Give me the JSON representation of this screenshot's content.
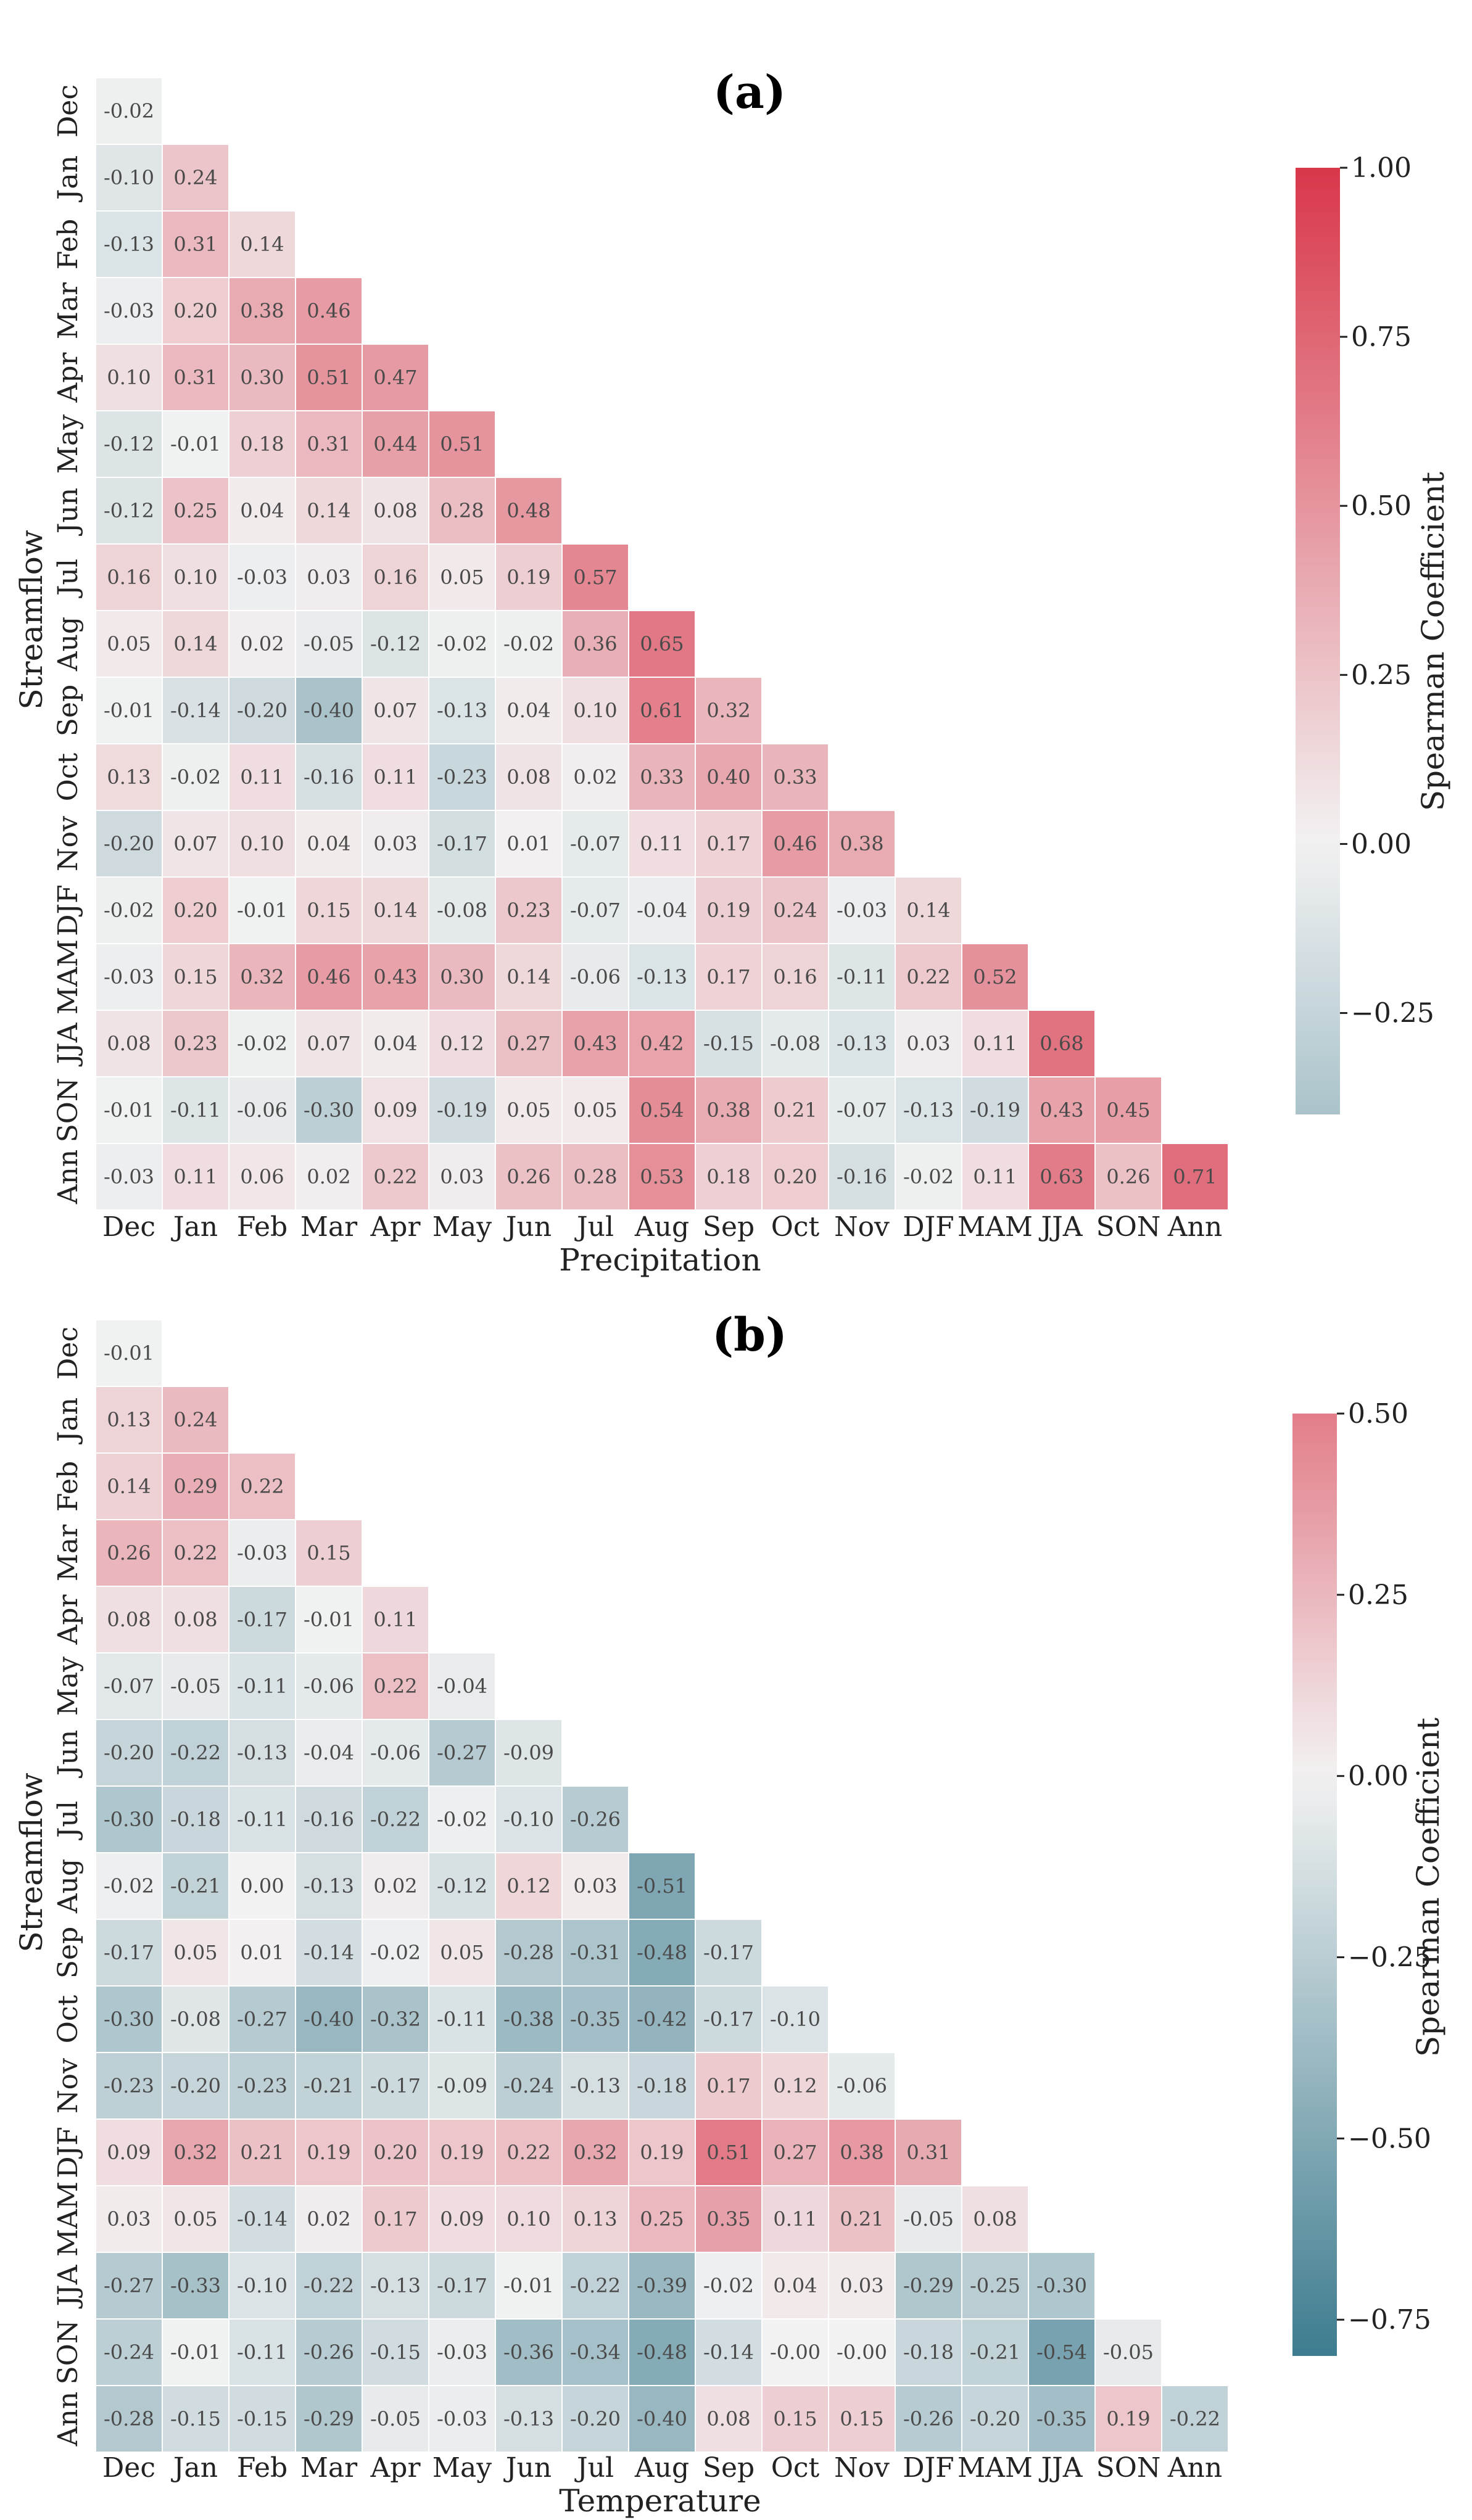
{
  "figure": {
    "panels": [
      "(a)",
      "(b)"
    ]
  },
  "chart_data": [
    {
      "type": "heatmap",
      "title": "(a)",
      "xlabel": "Precipitation",
      "ylabel": "Streamflow",
      "x_categories": [
        "Dec",
        "Jan",
        "Feb",
        "Mar",
        "Apr",
        "May",
        "Jun",
        "Jul",
        "Aug",
        "Sep",
        "Oct",
        "Nov",
        "DJF",
        "MAM",
        "JJA",
        "SON",
        "Ann"
      ],
      "y_categories": [
        "Dec",
        "Jan",
        "Feb",
        "Mar",
        "Apr",
        "May",
        "Jun",
        "Jul",
        "Aug",
        "Sep",
        "Oct",
        "Nov",
        "DJF",
        "MAM",
        "JJA",
        "SON",
        "Ann"
      ],
      "mask": "upper-triangle",
      "values": [
        [
          "-0.02"
        ],
        [
          "-0.10",
          "0.24"
        ],
        [
          "-0.13",
          "0.31",
          "0.14"
        ],
        [
          "-0.03",
          "0.20",
          "0.38",
          "0.46"
        ],
        [
          "0.10",
          "0.31",
          "0.30",
          "0.51",
          "0.47"
        ],
        [
          "-0.12",
          "-0.01",
          "0.18",
          "0.31",
          "0.44",
          "0.51"
        ],
        [
          "-0.12",
          "0.25",
          "0.04",
          "0.14",
          "0.08",
          "0.28",
          "0.48"
        ],
        [
          "0.16",
          "0.10",
          "-0.03",
          "0.03",
          "0.16",
          "0.05",
          "0.19",
          "0.57"
        ],
        [
          "0.05",
          "0.14",
          "0.02",
          "-0.05",
          "-0.12",
          "-0.02",
          "-0.02",
          "0.36",
          "0.65"
        ],
        [
          "-0.01",
          "-0.14",
          "-0.20",
          "-0.40",
          "0.07",
          "-0.13",
          "0.04",
          "0.10",
          "0.61",
          "0.32"
        ],
        [
          "0.13",
          "-0.02",
          "0.11",
          "-0.16",
          "0.11",
          "-0.23",
          "0.08",
          "0.02",
          "0.33",
          "0.40",
          "0.33"
        ],
        [
          "-0.20",
          "0.07",
          "0.10",
          "0.04",
          "0.03",
          "-0.17",
          "0.01",
          "-0.07",
          "0.11",
          "0.17",
          "0.46",
          "0.38"
        ],
        [
          "-0.02",
          "0.20",
          "-0.01",
          "0.15",
          "0.14",
          "-0.08",
          "0.23",
          "-0.07",
          "-0.04",
          "0.19",
          "0.24",
          "-0.03",
          "0.14"
        ],
        [
          "-0.03",
          "0.15",
          "0.32",
          "0.46",
          "0.43",
          "0.30",
          "0.14",
          "-0.06",
          "-0.13",
          "0.17",
          "0.16",
          "-0.11",
          "0.22",
          "0.52"
        ],
        [
          "0.08",
          "0.23",
          "-0.02",
          "0.07",
          "0.04",
          "0.12",
          "0.27",
          "0.43",
          "0.42",
          "-0.15",
          "-0.08",
          "-0.13",
          "0.03",
          "0.11",
          "0.68"
        ],
        [
          "-0.01",
          "-0.11",
          "-0.06",
          "-0.30",
          "0.09",
          "-0.19",
          "0.05",
          "0.05",
          "0.54",
          "0.38",
          "0.21",
          "-0.07",
          "-0.13",
          "-0.19",
          "0.43",
          "0.45"
        ],
        [
          "-0.03",
          "0.11",
          "0.06",
          "0.02",
          "0.22",
          "0.03",
          "0.26",
          "0.28",
          "0.53",
          "0.18",
          "0.20",
          "-0.16",
          "-0.02",
          "0.11",
          "0.63",
          "0.26",
          "0.71"
        ]
      ],
      "colorbar": {
        "label": "Spearman Coefficient",
        "vmin": -0.4,
        "vmax": 1.0,
        "center": 0.0,
        "color_range": 1.0,
        "ticks": [
          "1.00",
          "0.75",
          "0.50",
          "0.25",
          "0.00",
          "−0.25"
        ],
        "tick_values": [
          1.0,
          0.75,
          0.5,
          0.25,
          0.0,
          -0.25
        ]
      },
      "colors": {
        "negative": "#3d7c8f",
        "center": "#f2f2f2",
        "positive": "#d9374a"
      }
    },
    {
      "type": "heatmap",
      "title": "(b)",
      "xlabel": "Temperature",
      "ylabel": "Streamflow",
      "x_categories": [
        "Dec",
        "Jan",
        "Feb",
        "Mar",
        "Apr",
        "May",
        "Jun",
        "Jul",
        "Aug",
        "Sep",
        "Oct",
        "Nov",
        "DJF",
        "MAM",
        "JJA",
        "SON",
        "Ann"
      ],
      "y_categories": [
        "Dec",
        "Jan",
        "Feb",
        "Mar",
        "Apr",
        "May",
        "Jun",
        "Jul",
        "Aug",
        "Sep",
        "Oct",
        "Nov",
        "DJF",
        "MAM",
        "JJA",
        "SON",
        "Ann"
      ],
      "mask": "upper-triangle",
      "values": [
        [
          "-0.01"
        ],
        [
          "0.13",
          "0.24"
        ],
        [
          "0.14",
          "0.29",
          "0.22"
        ],
        [
          "0.26",
          "0.22",
          "-0.03",
          "0.15"
        ],
        [
          "0.08",
          "0.08",
          "-0.17",
          "-0.01",
          "0.11"
        ],
        [
          "-0.07",
          "-0.05",
          "-0.11",
          "-0.06",
          "0.22",
          "-0.04"
        ],
        [
          "-0.20",
          "-0.22",
          "-0.13",
          "-0.04",
          "-0.06",
          "-0.27",
          "-0.09"
        ],
        [
          "-0.30",
          "-0.18",
          "-0.11",
          "-0.16",
          "-0.22",
          "-0.02",
          "-0.10",
          "-0.26"
        ],
        [
          "-0.02",
          "-0.21",
          "0.00",
          "-0.13",
          "0.02",
          "-0.12",
          "0.12",
          "0.03",
          "-0.51"
        ],
        [
          "-0.17",
          "0.05",
          "0.01",
          "-0.14",
          "-0.02",
          "0.05",
          "-0.28",
          "-0.31",
          "-0.48",
          "-0.17"
        ],
        [
          "-0.30",
          "-0.08",
          "-0.27",
          "-0.40",
          "-0.32",
          "-0.11",
          "-0.38",
          "-0.35",
          "-0.42",
          "-0.17",
          "-0.10"
        ],
        [
          "-0.23",
          "-0.20",
          "-0.23",
          "-0.21",
          "-0.17",
          "-0.09",
          "-0.24",
          "-0.13",
          "-0.18",
          "0.17",
          "0.12",
          "-0.06"
        ],
        [
          "0.09",
          "0.32",
          "0.21",
          "0.19",
          "0.20",
          "0.19",
          "0.22",
          "0.32",
          "0.19",
          "0.51",
          "0.27",
          "0.38",
          "0.31"
        ],
        [
          "0.03",
          "0.05",
          "-0.14",
          "0.02",
          "0.17",
          "0.09",
          "0.10",
          "0.13",
          "0.25",
          "0.35",
          "0.11",
          "0.21",
          "-0.05",
          "0.08"
        ],
        [
          "-0.27",
          "-0.33",
          "-0.10",
          "-0.22",
          "-0.13",
          "-0.17",
          "-0.01",
          "-0.22",
          "-0.39",
          "-0.02",
          "0.04",
          "0.03",
          "-0.29",
          "-0.25",
          "-0.30"
        ],
        [
          "-0.24",
          "-0.01",
          "-0.11",
          "-0.26",
          "-0.15",
          "-0.03",
          "-0.36",
          "-0.34",
          "-0.48",
          "-0.14",
          "-0.00",
          "-0.00",
          "-0.18",
          "-0.21",
          "-0.54",
          "-0.05"
        ],
        [
          "-0.28",
          "-0.15",
          "-0.15",
          "-0.29",
          "-0.05",
          "-0.03",
          "-0.13",
          "-0.20",
          "-0.40",
          "0.08",
          "0.15",
          "0.15",
          "-0.26",
          "-0.20",
          "-0.35",
          "0.19",
          "-0.22"
        ]
      ],
      "colorbar": {
        "label": "Spearman Coefficient",
        "vmin": -0.8,
        "vmax": 0.5,
        "center": 0.0,
        "color_range": 0.8,
        "ticks": [
          "0.50",
          "0.25",
          "0.00",
          "−0.25",
          "−0.50",
          "−0.75"
        ],
        "tick_values": [
          0.5,
          0.25,
          0.0,
          -0.25,
          -0.5,
          -0.75
        ]
      },
      "colors": {
        "negative": "#3d7c8f",
        "center": "#f2f2f2",
        "positive": "#d9374a"
      }
    }
  ]
}
